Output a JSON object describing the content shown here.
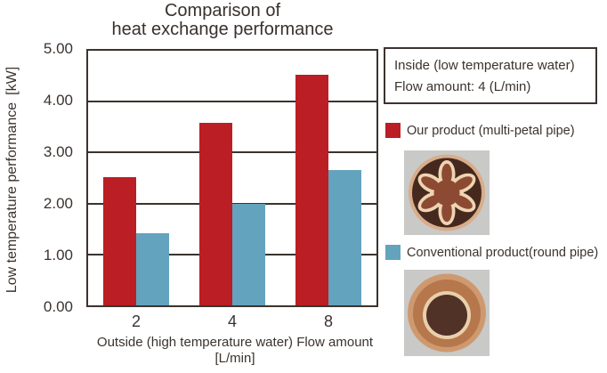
{
  "title": {
    "line1": "Comparison of",
    "line2": "heat exchange performance"
  },
  "y_axis": {
    "label": "Low temperature performance [kW]",
    "ticks": [
      "5.00",
      "4.00",
      "3.00",
      "2.00",
      "1.00",
      "0.00"
    ]
  },
  "x_axis": {
    "categories": [
      "2",
      "4",
      "8"
    ],
    "label_line1": "Outside (high temperature water) Flow amount",
    "label_line2": "[L/min]"
  },
  "info_box": {
    "line1": "Inside (low temperature water)",
    "line2": "Flow amount: 4 (L/min)"
  },
  "legend": {
    "our_product": {
      "label": "Our product (multi-petal pipe)",
      "color": "#bb1e24"
    },
    "conventional": {
      "label": "Conventional product(round pipe)",
      "color": "#63a3be"
    }
  },
  "photos": {
    "multi_petal_alt": "multi-petal pipe cross-section photo",
    "round_pipe_alt": "round pipe cross-section photo"
  },
  "colors": {
    "text": "#3b332f",
    "frame": "#3b332f",
    "photo_bg": "#c9c9c7"
  },
  "chart_data": {
    "type": "bar",
    "categories": [
      "2",
      "4",
      "8"
    ],
    "series": [
      {
        "name": "Our product (multi-petal pipe)",
        "color": "#bb1e24",
        "values": [
          2.52,
          3.58,
          4.52
        ]
      },
      {
        "name": "Conventional product(round pipe)",
        "color": "#63a3be",
        "values": [
          1.41,
          2.0,
          2.65
        ]
      }
    ],
    "title": "Comparison of heat exchange performance",
    "xlabel": "Outside (high temperature water) Flow amount [L/min]",
    "ylabel": "Low temperature performance [kW]",
    "ylim": [
      0,
      5
    ],
    "y_tick_step": 1,
    "grid": true,
    "legend_position": "right"
  }
}
